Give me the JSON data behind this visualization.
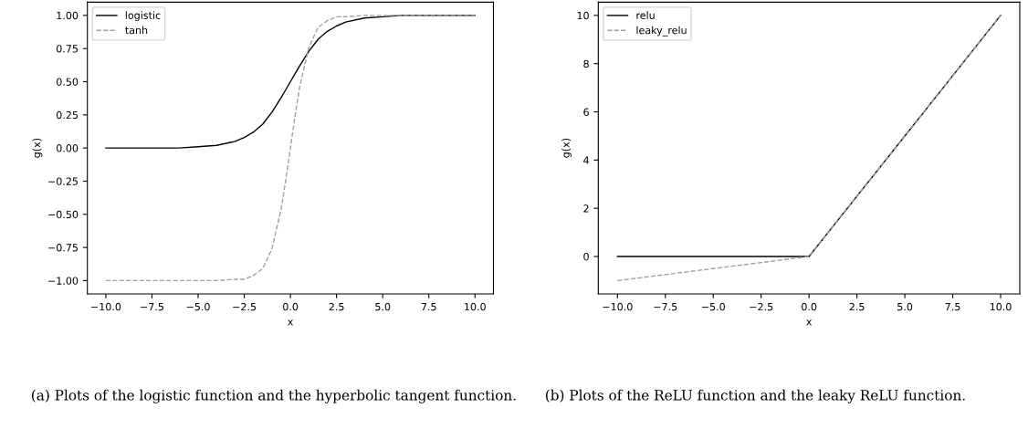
{
  "chart_data": [
    {
      "type": "line",
      "xlabel": "x",
      "ylabel": "g(x)",
      "legend": "top left",
      "grid": false,
      "x": [
        -10,
        -8,
        -6,
        -5,
        -4,
        -3,
        -2.5,
        -2,
        -1.5,
        -1,
        -0.5,
        -0.25,
        0,
        0.25,
        0.5,
        1,
        1.5,
        2,
        2.5,
        3,
        4,
        5,
        6,
        8,
        10
      ],
      "series": [
        {
          "name": "logistic",
          "color": "#000000",
          "line_style": "solid",
          "values": [
            0.0,
            0.0,
            0.0,
            0.01,
            0.02,
            0.05,
            0.08,
            0.12,
            0.18,
            0.27,
            0.38,
            0.44,
            0.5,
            0.56,
            0.62,
            0.73,
            0.82,
            0.88,
            0.92,
            0.95,
            0.98,
            0.99,
            1.0,
            1.0,
            1.0
          ]
        },
        {
          "name": "tanh",
          "color": "#a0a0a0",
          "line_style": "dashed",
          "values": [
            -1.0,
            -1.0,
            -1.0,
            -1.0,
            -1.0,
            -0.99,
            -0.99,
            -0.96,
            -0.91,
            -0.76,
            -0.46,
            -0.24,
            0.0,
            0.24,
            0.46,
            0.76,
            0.91,
            0.96,
            0.99,
            0.99,
            1.0,
            1.0,
            1.0,
            1.0,
            1.0
          ]
        }
      ],
      "xlim": [
        -11,
        11
      ],
      "ylim": [
        -1.1,
        1.1
      ],
      "xticks": [
        {
          "value": -10,
          "label": "−10.0"
        },
        {
          "value": -7.5,
          "label": "−7.5"
        },
        {
          "value": -5,
          "label": "−5.0"
        },
        {
          "value": -2.5,
          "label": "−2.5"
        },
        {
          "value": 0,
          "label": "0.0"
        },
        {
          "value": 2.5,
          "label": "2.5"
        },
        {
          "value": 5,
          "label": "5.0"
        },
        {
          "value": 7.5,
          "label": "7.5"
        },
        {
          "value": 10,
          "label": "10.0"
        }
      ],
      "yticks": [
        {
          "value": -1,
          "label": "−1.00"
        },
        {
          "value": -0.75,
          "label": "−0.75"
        },
        {
          "value": -0.5,
          "label": "−0.50"
        },
        {
          "value": -0.25,
          "label": "−0.25"
        },
        {
          "value": 0,
          "label": "0.00"
        },
        {
          "value": 0.25,
          "label": "0.25"
        },
        {
          "value": 0.5,
          "label": "0.50"
        },
        {
          "value": 0.75,
          "label": "0.75"
        },
        {
          "value": 1,
          "label": "1.00"
        }
      ],
      "annotations": [
        "(a) Plots of the logistic function and the hyperbolic tangent function."
      ]
    },
    {
      "type": "line",
      "xlabel": "x",
      "ylabel": "g(x)",
      "legend": "top left",
      "grid": false,
      "x": [
        -10,
        -5,
        0,
        5,
        10
      ],
      "series": [
        {
          "name": "relu",
          "color": "#000000",
          "line_style": "solid",
          "values": [
            0,
            0,
            0,
            5,
            10
          ]
        },
        {
          "name": "leaky_relu",
          "color": "#a0a0a0",
          "line_style": "dashed",
          "values": [
            -1,
            -0.5,
            0,
            5,
            10
          ]
        }
      ],
      "xlim": [
        -11,
        11
      ],
      "ylim": [
        -1.55,
        10.55
      ],
      "xticks": [
        {
          "value": -10,
          "label": "−10.0"
        },
        {
          "value": -7.5,
          "label": "−7.5"
        },
        {
          "value": -5,
          "label": "−5.0"
        },
        {
          "value": -2.5,
          "label": "−2.5"
        },
        {
          "value": 0,
          "label": "0.0"
        },
        {
          "value": 2.5,
          "label": "2.5"
        },
        {
          "value": 5,
          "label": "5.0"
        },
        {
          "value": 7.5,
          "label": "7.5"
        },
        {
          "value": 10,
          "label": "10.0"
        }
      ],
      "yticks": [
        0,
        2,
        4,
        6,
        8,
        10
      ],
      "annotations": [
        "(b) Plots of the ReLU function and the leaky ReLU function."
      ]
    }
  ]
}
